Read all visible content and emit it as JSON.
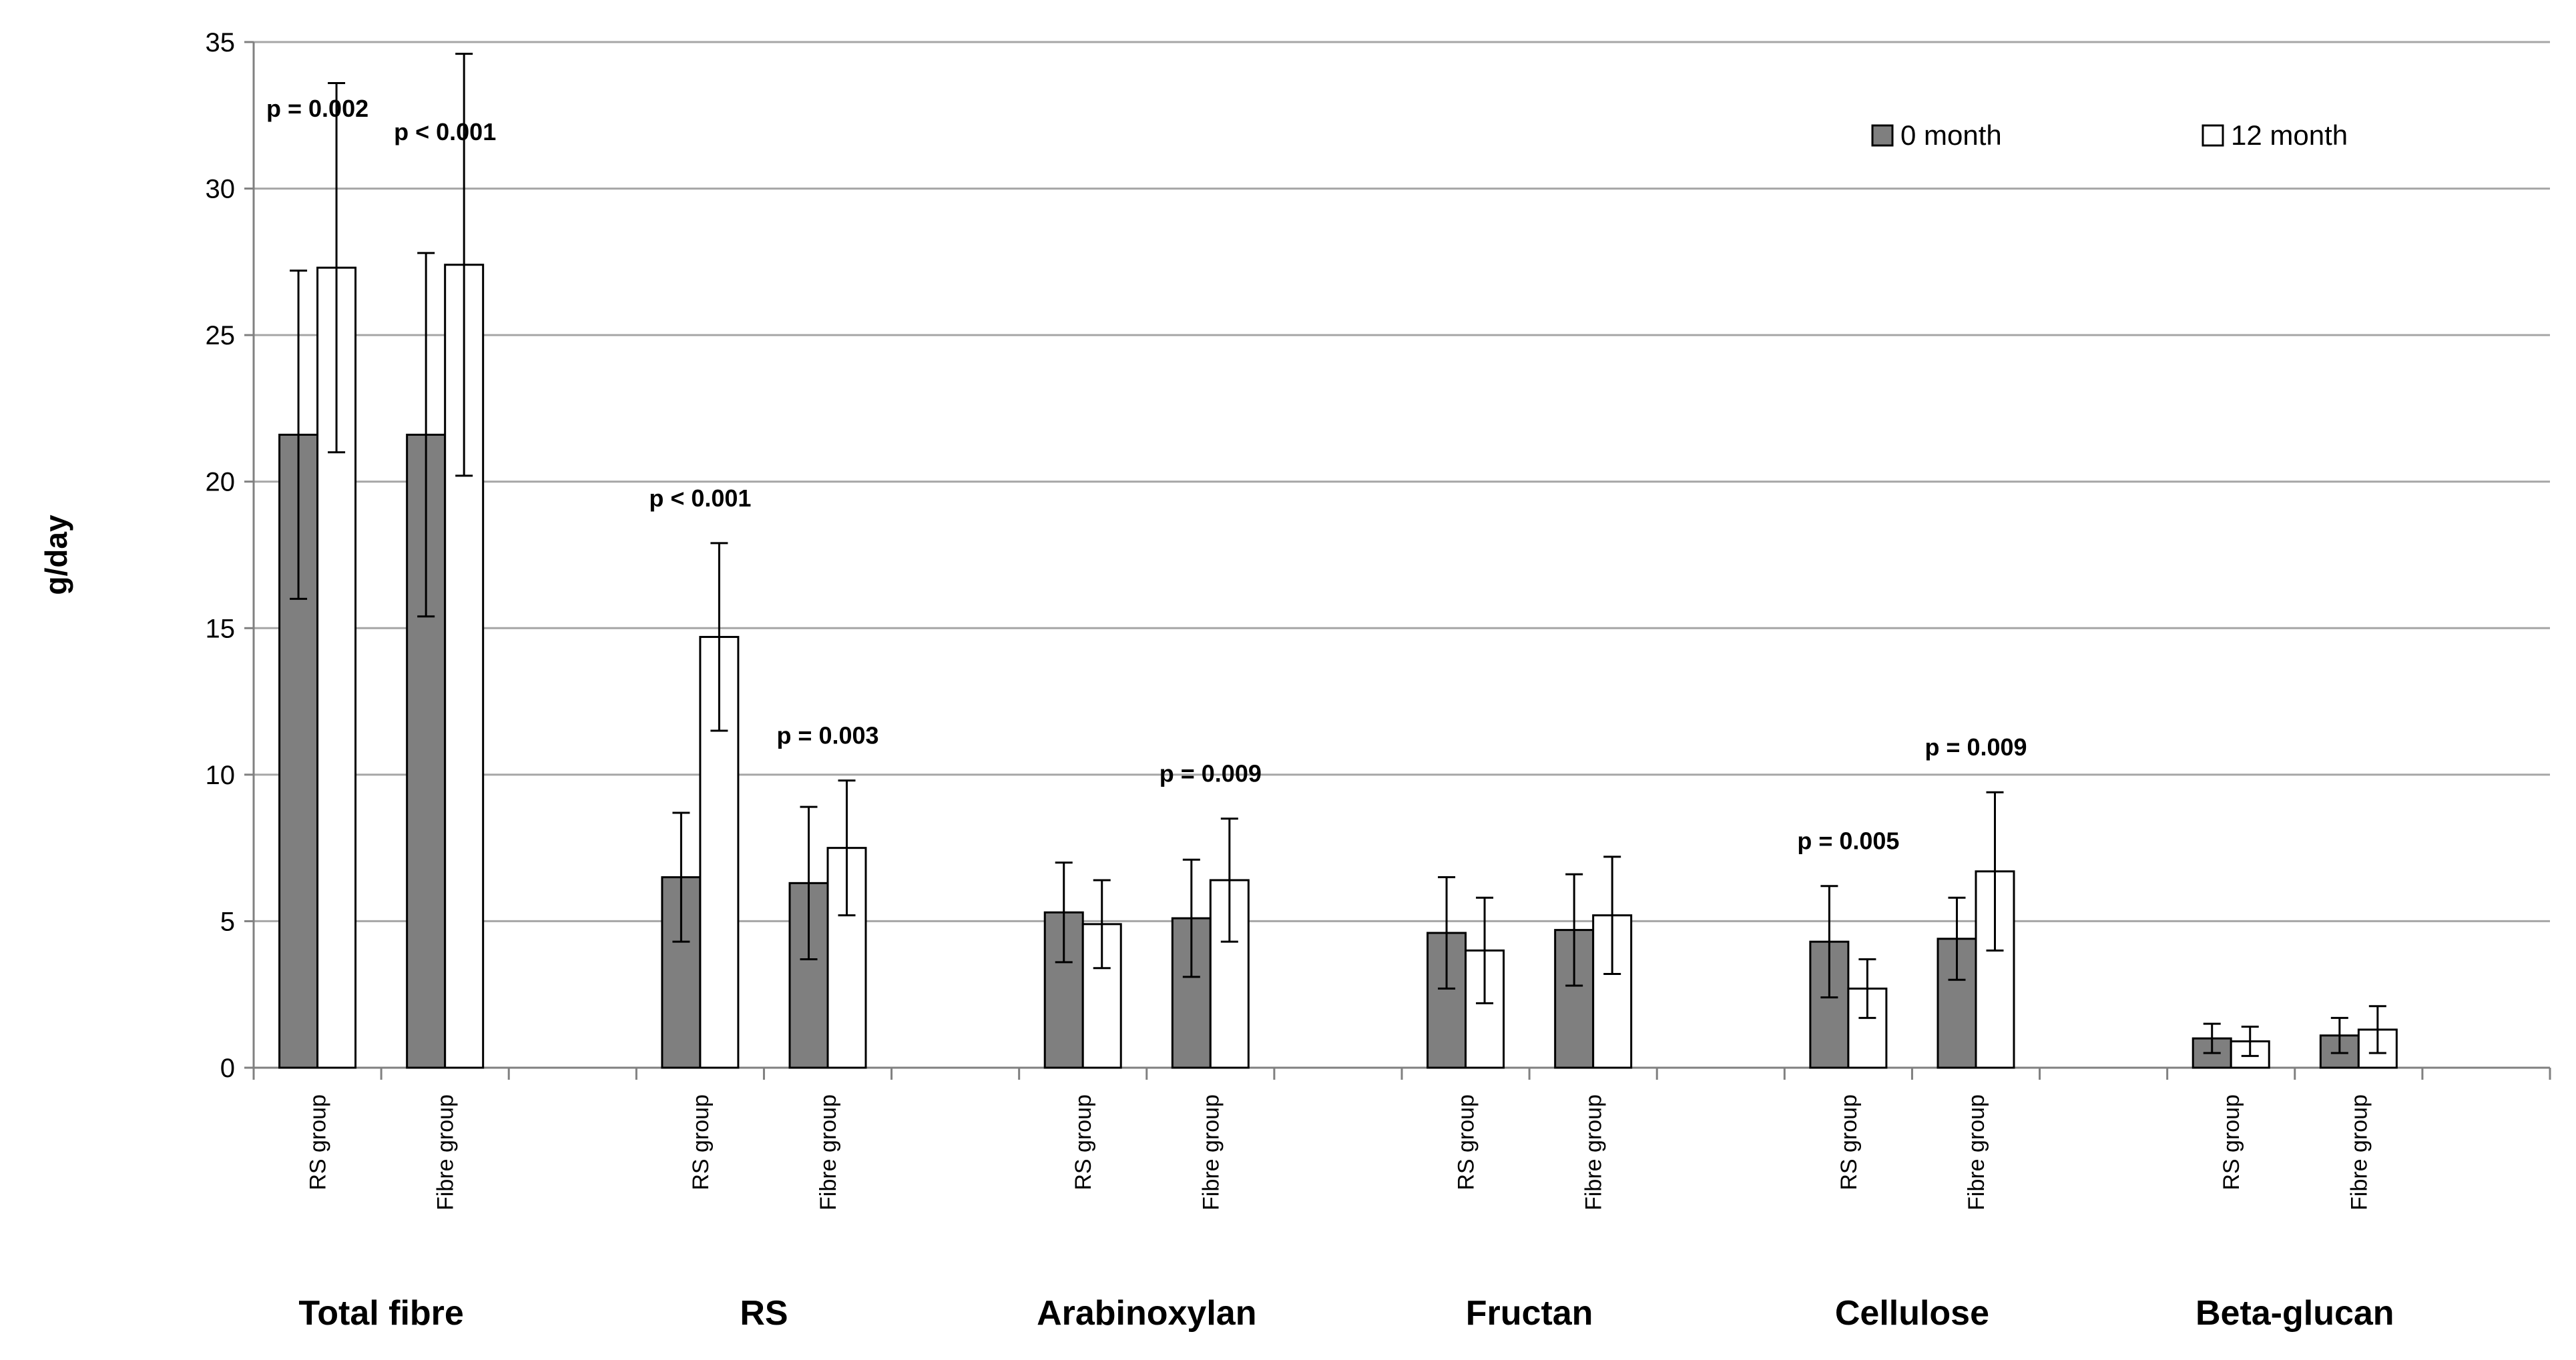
{
  "chart_data": {
    "type": "bar",
    "ylabel": "g/day",
    "ylim": [
      0,
      35
    ],
    "yticks": [
      "0",
      "5",
      "10",
      "15",
      "20",
      "25",
      "30",
      "35"
    ],
    "grid": true,
    "legend_position": "top-right",
    "groups": [
      "Total fibre",
      "RS",
      "Arabinoxylan",
      "Fructan",
      "Cellulose",
      "Beta-glucan"
    ],
    "subcategories": [
      "RS group",
      "Fibre group"
    ],
    "series": [
      {
        "name": "0 month",
        "color": "#7f7f7f",
        "values": [
          [
            21.6,
            21.6
          ],
          [
            6.5,
            6.3
          ],
          [
            5.3,
            5.1
          ],
          [
            4.6,
            4.7
          ],
          [
            4.3,
            4.4
          ],
          [
            1.0,
            1.1
          ]
        ],
        "errors": [
          [
            5.6,
            6.2
          ],
          [
            2.2,
            2.6
          ],
          [
            1.7,
            2.0
          ],
          [
            1.9,
            1.9
          ],
          [
            1.9,
            1.4
          ],
          [
            0.5,
            0.6
          ]
        ]
      },
      {
        "name": "12 month",
        "color": "#ffffff",
        "values": [
          [
            27.3,
            27.4
          ],
          [
            14.7,
            7.5
          ],
          [
            4.9,
            6.4
          ],
          [
            4.0,
            5.2
          ],
          [
            2.7,
            6.7
          ],
          [
            0.9,
            1.3
          ]
        ],
        "errors": [
          [
            6.3,
            7.2
          ],
          [
            3.2,
            2.3
          ],
          [
            1.5,
            2.1
          ],
          [
            1.8,
            2.0
          ],
          [
            1.0,
            2.7
          ],
          [
            0.5,
            0.8
          ]
        ]
      }
    ],
    "annotations": [
      {
        "group": 0,
        "sub": 0,
        "text": "p = 0.002"
      },
      {
        "group": 0,
        "sub": 1,
        "text": "p < 0.001"
      },
      {
        "group": 1,
        "sub": 0,
        "text": "p < 0.001"
      },
      {
        "group": 1,
        "sub": 1,
        "text": "p = 0.003"
      },
      {
        "group": 2,
        "sub": 1,
        "text": "p = 0.009"
      },
      {
        "group": 4,
        "sub": 0,
        "text": "p = 0.005"
      },
      {
        "group": 4,
        "sub": 1,
        "text": "p = 0.009"
      }
    ]
  }
}
